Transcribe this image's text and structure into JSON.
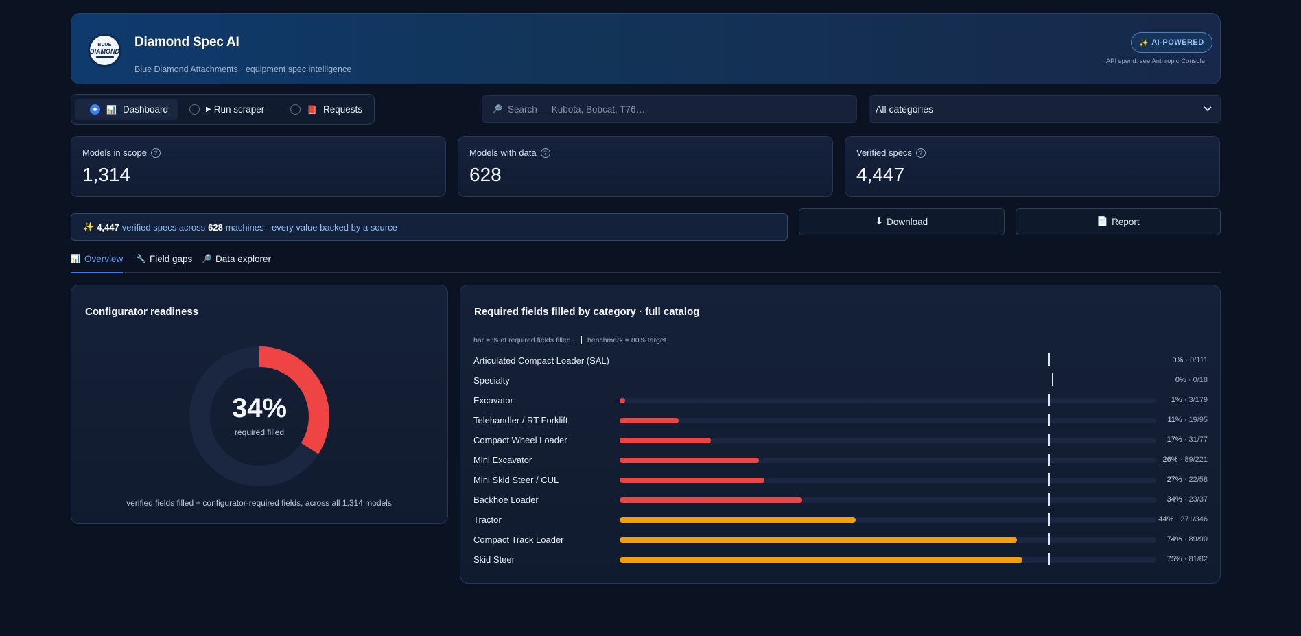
{
  "header": {
    "logo_text_top": "BLUE",
    "logo_text_main": "DIAMOND",
    "title": "Diamond Spec AI",
    "subtitle": "Blue Diamond Attachments · equipment spec intelligence",
    "badge": "AI-POWERED",
    "badge_icon": "sparkles-icon",
    "api_note": "API spend: see Anthropic Console"
  },
  "nav": {
    "options": [
      {
        "icon": "📊",
        "label": "Dashboard",
        "selected": true
      },
      {
        "icon": "▶",
        "label": "Run scraper",
        "selected": false
      },
      {
        "icon": "📕",
        "label": "Requests",
        "selected": false
      }
    ]
  },
  "search": {
    "icon": "🔎",
    "placeholder": "Search — Kubota, Bobcat, T76…"
  },
  "category_select": {
    "value": "All categories"
  },
  "metrics": [
    {
      "label": "Models in scope",
      "value": "1,314"
    },
    {
      "label": "Models with data",
      "value": "628"
    },
    {
      "label": "Verified specs",
      "value": "4,447"
    }
  ],
  "banner": {
    "icon": "✨",
    "specs": "4,447",
    "text1": "verified specs across",
    "machines": "628",
    "text2": "machines · every value backed by a source"
  },
  "actions": {
    "download_icon": "⬇",
    "download": "Download",
    "report_icon": "📄",
    "report": "Report"
  },
  "tabs": [
    {
      "icon": "📊",
      "label": "Overview",
      "active": true
    },
    {
      "icon": "🔧",
      "label": "Field gaps",
      "active": false
    },
    {
      "icon": "🔎",
      "label": "Data explorer",
      "active": false
    }
  ],
  "readiness": {
    "title": "Configurator readiness",
    "percent": 34,
    "percent_label": "34%",
    "sub": "required filled",
    "note": "verified fields filled ÷ configurator-required fields, across all 1,314 models",
    "fill_color": "#ef4444",
    "track_color": "#1b2740"
  },
  "categories_panel": {
    "title": "Required fields filled by category · full catalog",
    "legend_left": "bar = % of required fields filled  ·",
    "legend_right": "benchmark = 80% target",
    "colors": {
      "low": "#ef4444",
      "mid": "#f59e0b"
    },
    "rows": [
      {
        "name": "Articulated Compact Loader (SAL)",
        "pct": 0,
        "pct_label": "0%",
        "count": "0/111",
        "color": "low"
      },
      {
        "name": "Specialty",
        "pct": 0,
        "pct_label": "0%",
        "count": "0/18",
        "color": "low"
      },
      {
        "name": "Excavator",
        "pct": 1,
        "pct_label": "1%",
        "count": "3/179",
        "color": "low"
      },
      {
        "name": "Telehandler / RT Forklift",
        "pct": 11,
        "pct_label": "11%",
        "count": "19/95",
        "color": "low"
      },
      {
        "name": "Compact Wheel Loader",
        "pct": 17,
        "pct_label": "17%",
        "count": "31/77",
        "color": "low"
      },
      {
        "name": "Mini Excavator",
        "pct": 26,
        "pct_label": "26%",
        "count": "89/221",
        "color": "low"
      },
      {
        "name": "Mini Skid Steer / CUL",
        "pct": 27,
        "pct_label": "27%",
        "count": "22/58",
        "color": "low"
      },
      {
        "name": "Backhoe Loader",
        "pct": 34,
        "pct_label": "34%",
        "count": "23/37",
        "color": "low"
      },
      {
        "name": "Tractor",
        "pct": 44,
        "pct_label": "44%",
        "count": "271/346",
        "color": "mid"
      },
      {
        "name": "Compact Track Loader",
        "pct": 74,
        "pct_label": "74%",
        "count": "89/90",
        "color": "mid"
      },
      {
        "name": "Skid Steer",
        "pct": 75,
        "pct_label": "75%",
        "count": "81/82",
        "color": "mid"
      }
    ]
  }
}
